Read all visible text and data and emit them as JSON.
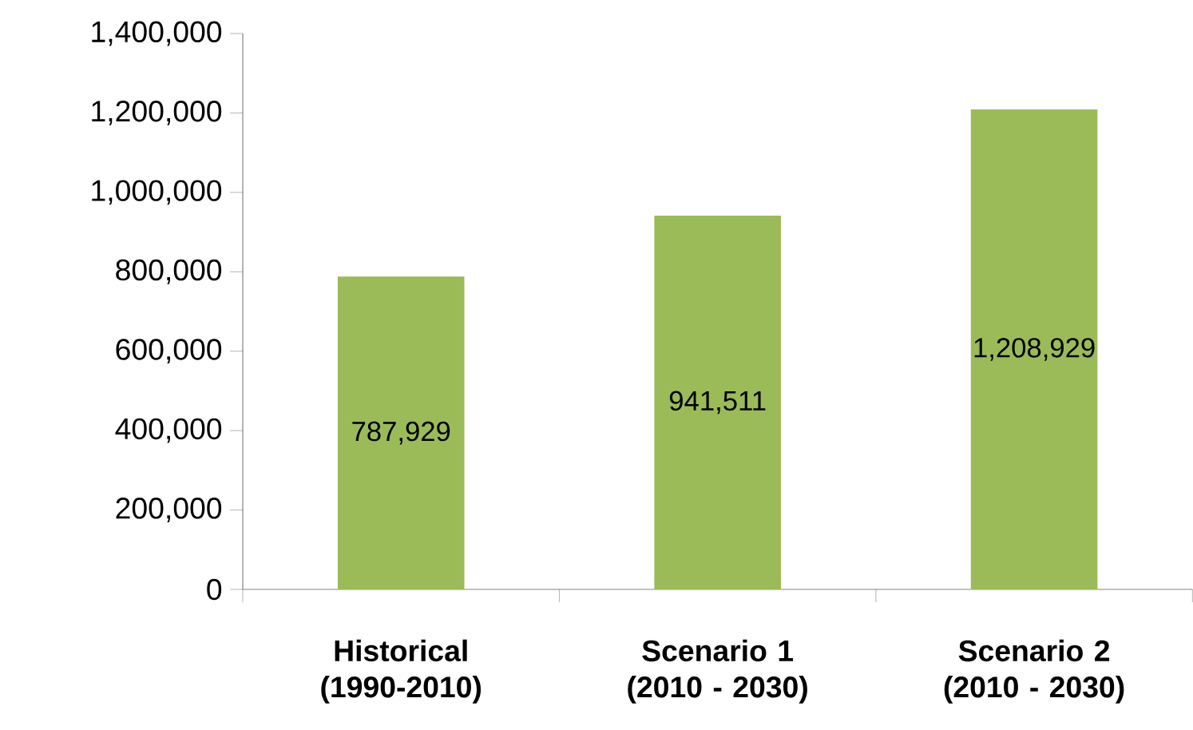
{
  "chart_data": {
    "type": "bar",
    "categories": [
      "Historical (1990-2010)",
      "Scenario 1 (2010 - 2030)",
      "Scenario 2 (2010 - 2030)"
    ],
    "values": [
      787929,
      941511,
      1208929
    ],
    "value_labels": [
      "787,929",
      "941,511",
      "1,208,929"
    ],
    "color": "#9bbb59",
    "ylim": [
      0,
      1400000
    ],
    "yticks": [
      {
        "value": 0,
        "label": "0"
      },
      {
        "value": 200000,
        "label": "200,000"
      },
      {
        "value": 400000,
        "label": "400,000"
      },
      {
        "value": 600000,
        "label": "600,000"
      },
      {
        "value": 800000,
        "label": "800,000"
      },
      {
        "value": 1000000,
        "label": "1,000,000"
      },
      {
        "value": 1200000,
        "label": "1,200,000"
      },
      {
        "value": 1400000,
        "label": "1,400,000"
      }
    ]
  }
}
